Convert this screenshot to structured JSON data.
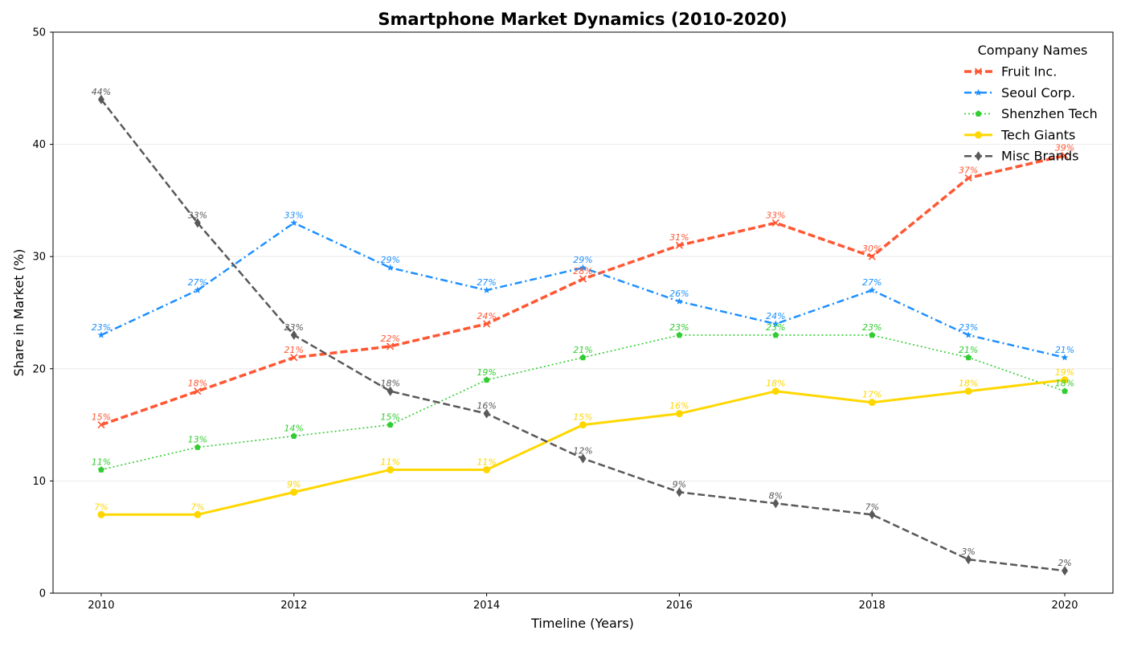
{
  "chart_data": {
    "type": "line",
    "title": "Smartphone Market Dynamics (2010-2020)",
    "xlabel": "Timeline (Years)",
    "ylabel": "Share in Market (%)",
    "x": [
      2010,
      2011,
      2012,
      2013,
      2014,
      2015,
      2016,
      2017,
      2018,
      2019,
      2020
    ],
    "xlim": [
      2009.5,
      2020.5
    ],
    "ylim": [
      0,
      50
    ],
    "x_ticks": [
      2010,
      2012,
      2014,
      2016,
      2018,
      2020
    ],
    "y_ticks": [
      0,
      10,
      20,
      30,
      40,
      50
    ],
    "grid": "horizontal",
    "legend": {
      "title": "Company Names",
      "position": "top-right"
    },
    "value_suffix": "%",
    "series": [
      {
        "name": "Fruit Inc.",
        "color": "#ff5733",
        "line_style": "dashed",
        "marker": "x",
        "values": [
          15,
          18,
          21,
          22,
          24,
          28,
          31,
          33,
          30,
          37,
          39
        ]
      },
      {
        "name": "Seoul Corp.",
        "color": "#1e90ff",
        "line_style": "dash-dot",
        "marker": "star",
        "values": [
          23,
          27,
          33,
          29,
          27,
          29,
          26,
          24,
          27,
          23,
          21
        ]
      },
      {
        "name": "Shenzhen Tech",
        "color": "#32cd32",
        "line_style": "dotted",
        "marker": "pentagon",
        "values": [
          11,
          13,
          14,
          15,
          19,
          21,
          23,
          23,
          23,
          21,
          18
        ]
      },
      {
        "name": "Tech Giants",
        "color": "#ffd700",
        "line_style": "solid",
        "marker": "circle",
        "values": [
          7,
          7,
          9,
          11,
          11,
          15,
          16,
          18,
          17,
          18,
          19
        ]
      },
      {
        "name": "Misc Brands",
        "color": "#595959",
        "line_style": "dashed",
        "marker": "diamond",
        "values": [
          44,
          33,
          23,
          18,
          16,
          12,
          9,
          8,
          7,
          3,
          2
        ]
      }
    ]
  }
}
